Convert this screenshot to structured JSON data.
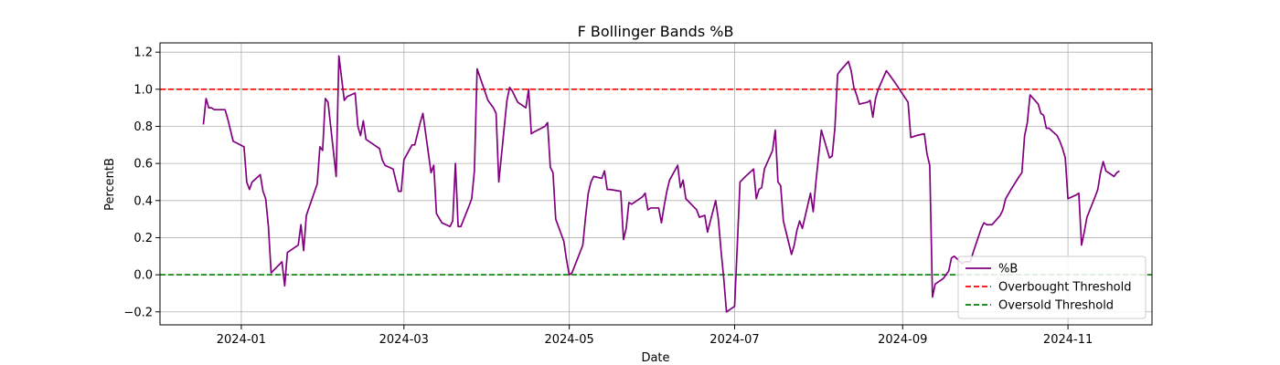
{
  "chart_data": {
    "type": "line",
    "title": "F Bollinger Bands %B",
    "xlabel": "Date",
    "ylabel": "PercentB",
    "xlim": [
      "2023-12-02",
      "2024-12-02"
    ],
    "ylim": [
      -0.27,
      1.25
    ],
    "x_ticks": [
      "2024-01-01",
      "2024-03-01",
      "2024-05-01",
      "2024-07-01",
      "2024-09-01",
      "2024-11-01"
    ],
    "x_tick_labels": [
      "2024-01",
      "2024-03",
      "2024-05",
      "2024-07",
      "2024-09",
      "2024-11"
    ],
    "y_ticks": [
      -0.2,
      0.0,
      0.2,
      0.4,
      0.6,
      0.8,
      1.0,
      1.2
    ],
    "y_tick_labels": [
      "−0.2",
      "0.0",
      "0.2",
      "0.4",
      "0.6",
      "0.8",
      "1.0",
      "1.2"
    ],
    "grid": true,
    "legend_position": "lower-right",
    "series": [
      {
        "name": "%B",
        "color": "#800080",
        "style": "solid",
        "points": [
          [
            "2023-12-18",
            0.81
          ],
          [
            "2023-12-19",
            0.95
          ],
          [
            "2023-12-20",
            0.9
          ],
          [
            "2023-12-21",
            0.9
          ],
          [
            "2023-12-22",
            0.89
          ],
          [
            "2023-12-26",
            0.89
          ],
          [
            "2023-12-27",
            0.84
          ],
          [
            "2023-12-28",
            0.78
          ],
          [
            "2023-12-29",
            0.72
          ],
          [
            "2024-01-02",
            0.69
          ],
          [
            "2024-01-03",
            0.5
          ],
          [
            "2024-01-04",
            0.46
          ],
          [
            "2024-01-05",
            0.5
          ],
          [
            "2024-01-08",
            0.54
          ],
          [
            "2024-01-09",
            0.45
          ],
          [
            "2024-01-10",
            0.41
          ],
          [
            "2024-01-11",
            0.26
          ],
          [
            "2024-01-12",
            0.01
          ],
          [
            "2024-01-16",
            0.07
          ],
          [
            "2024-01-17",
            -0.06
          ],
          [
            "2024-01-18",
            0.12
          ],
          [
            "2024-01-19",
            0.13
          ],
          [
            "2024-01-22",
            0.16
          ],
          [
            "2024-01-23",
            0.27
          ],
          [
            "2024-01-24",
            0.13
          ],
          [
            "2024-01-25",
            0.32
          ],
          [
            "2024-01-29",
            0.49
          ],
          [
            "2024-01-30",
            0.69
          ],
          [
            "2024-01-31",
            0.67
          ],
          [
            "2024-02-01",
            0.95
          ],
          [
            "2024-02-02",
            0.93
          ],
          [
            "2024-02-05",
            0.53
          ],
          [
            "2024-02-06",
            1.18
          ],
          [
            "2024-02-07",
            1.06
          ],
          [
            "2024-02-08",
            0.94
          ],
          [
            "2024-02-09",
            0.96
          ],
          [
            "2024-02-12",
            0.98
          ],
          [
            "2024-02-13",
            0.8
          ],
          [
            "2024-02-14",
            0.75
          ],
          [
            "2024-02-15",
            0.83
          ],
          [
            "2024-02-16",
            0.73
          ],
          [
            "2024-02-20",
            0.69
          ],
          [
            "2024-02-21",
            0.68
          ],
          [
            "2024-02-22",
            0.62
          ],
          [
            "2024-02-23",
            0.59
          ],
          [
            "2024-02-26",
            0.57
          ],
          [
            "2024-02-27",
            0.51
          ],
          [
            "2024-02-28",
            0.45
          ],
          [
            "2024-02-29",
            0.45
          ],
          [
            "2024-03-01",
            0.62
          ],
          [
            "2024-03-04",
            0.7
          ],
          [
            "2024-03-05",
            0.7
          ],
          [
            "2024-03-07",
            0.82
          ],
          [
            "2024-03-08",
            0.87
          ],
          [
            "2024-03-11",
            0.55
          ],
          [
            "2024-03-12",
            0.59
          ],
          [
            "2024-03-13",
            0.33
          ],
          [
            "2024-03-15",
            0.28
          ],
          [
            "2024-03-18",
            0.26
          ],
          [
            "2024-03-19",
            0.29
          ],
          [
            "2024-03-20",
            0.6
          ],
          [
            "2024-03-21",
            0.26
          ],
          [
            "2024-03-22",
            0.26
          ],
          [
            "2024-03-25",
            0.37
          ],
          [
            "2024-03-26",
            0.41
          ],
          [
            "2024-03-27",
            0.56
          ],
          [
            "2024-03-28",
            1.11
          ],
          [
            "2024-04-01",
            0.94
          ],
          [
            "2024-04-03",
            0.9
          ],
          [
            "2024-04-04",
            0.87
          ],
          [
            "2024-04-05",
            0.5
          ],
          [
            "2024-04-08",
            0.94
          ],
          [
            "2024-04-09",
            1.01
          ],
          [
            "2024-04-10",
            0.99
          ],
          [
            "2024-04-11",
            0.96
          ],
          [
            "2024-04-12",
            0.93
          ],
          [
            "2024-04-15",
            0.9
          ],
          [
            "2024-04-16",
            1.0
          ],
          [
            "2024-04-17",
            0.76
          ],
          [
            "2024-04-18",
            0.77
          ],
          [
            "2024-04-22",
            0.8
          ],
          [
            "2024-04-23",
            0.82
          ],
          [
            "2024-04-24",
            0.58
          ],
          [
            "2024-04-25",
            0.55
          ],
          [
            "2024-04-26",
            0.3
          ],
          [
            "2024-04-29",
            0.18
          ],
          [
            "2024-04-30",
            0.08
          ],
          [
            "2024-05-01",
            0.0
          ],
          [
            "2024-05-02",
            0.01
          ],
          [
            "2024-05-06",
            0.16
          ],
          [
            "2024-05-07",
            0.31
          ],
          [
            "2024-05-08",
            0.44
          ],
          [
            "2024-05-09",
            0.5
          ],
          [
            "2024-05-10",
            0.53
          ],
          [
            "2024-05-13",
            0.52
          ],
          [
            "2024-05-14",
            0.56
          ],
          [
            "2024-05-15",
            0.46
          ],
          [
            "2024-05-16",
            0.46
          ],
          [
            "2024-05-20",
            0.45
          ],
          [
            "2024-05-21",
            0.19
          ],
          [
            "2024-05-22",
            0.25
          ],
          [
            "2024-05-23",
            0.39
          ],
          [
            "2024-05-24",
            0.38
          ],
          [
            "2024-05-28",
            0.42
          ],
          [
            "2024-05-29",
            0.44
          ],
          [
            "2024-05-30",
            0.35
          ],
          [
            "2024-05-31",
            0.36
          ],
          [
            "2024-06-03",
            0.36
          ],
          [
            "2024-06-04",
            0.28
          ],
          [
            "2024-06-05",
            0.37
          ],
          [
            "2024-06-06",
            0.45
          ],
          [
            "2024-06-07",
            0.51
          ],
          [
            "2024-06-10",
            0.59
          ],
          [
            "2024-06-11",
            0.47
          ],
          [
            "2024-06-12",
            0.51
          ],
          [
            "2024-06-13",
            0.41
          ],
          [
            "2024-06-17",
            0.35
          ],
          [
            "2024-06-18",
            0.31
          ],
          [
            "2024-06-20",
            0.32
          ],
          [
            "2024-06-21",
            0.23
          ],
          [
            "2024-06-24",
            0.4
          ],
          [
            "2024-06-25",
            0.3
          ],
          [
            "2024-06-26",
            0.13
          ],
          [
            "2024-06-27",
            -0.02
          ],
          [
            "2024-06-28",
            -0.2
          ],
          [
            "2024-07-01",
            -0.17
          ],
          [
            "2024-07-02",
            0.16
          ],
          [
            "2024-07-03",
            0.5
          ],
          [
            "2024-07-05",
            0.53
          ],
          [
            "2024-07-08",
            0.57
          ],
          [
            "2024-07-09",
            0.41
          ],
          [
            "2024-07-10",
            0.46
          ],
          [
            "2024-07-11",
            0.47
          ],
          [
            "2024-07-12",
            0.57
          ],
          [
            "2024-07-15",
            0.67
          ],
          [
            "2024-07-16",
            0.78
          ],
          [
            "2024-07-17",
            0.5
          ],
          [
            "2024-07-18",
            0.48
          ],
          [
            "2024-07-19",
            0.29
          ],
          [
            "2024-07-22",
            0.11
          ],
          [
            "2024-07-23",
            0.16
          ],
          [
            "2024-07-24",
            0.24
          ],
          [
            "2024-07-25",
            0.29
          ],
          [
            "2024-07-26",
            0.25
          ],
          [
            "2024-07-29",
            0.44
          ],
          [
            "2024-07-30",
            0.34
          ],
          [
            "2024-07-31",
            0.5
          ],
          [
            "2024-08-02",
            0.78
          ],
          [
            "2024-08-05",
            0.63
          ],
          [
            "2024-08-06",
            0.64
          ],
          [
            "2024-08-07",
            0.79
          ],
          [
            "2024-08-08",
            1.08
          ],
          [
            "2024-08-09",
            1.1
          ],
          [
            "2024-08-12",
            1.15
          ],
          [
            "2024-08-13",
            1.1
          ],
          [
            "2024-08-14",
            1.01
          ],
          [
            "2024-08-15",
            0.97
          ],
          [
            "2024-08-16",
            0.92
          ],
          [
            "2024-08-19",
            0.93
          ],
          [
            "2024-08-20",
            0.94
          ],
          [
            "2024-08-21",
            0.85
          ],
          [
            "2024-08-22",
            0.95
          ],
          [
            "2024-08-23",
            1.0
          ],
          [
            "2024-08-26",
            1.1
          ],
          [
            "2024-08-27",
            1.08
          ],
          [
            "2024-08-28",
            1.06
          ],
          [
            "2024-08-29",
            1.04
          ],
          [
            "2024-09-03",
            0.93
          ],
          [
            "2024-09-04",
            0.74
          ],
          [
            "2024-09-06",
            0.75
          ],
          [
            "2024-09-09",
            0.76
          ],
          [
            "2024-09-10",
            0.65
          ],
          [
            "2024-09-11",
            0.59
          ],
          [
            "2024-09-12",
            -0.12
          ],
          [
            "2024-09-13",
            -0.05
          ],
          [
            "2024-09-16",
            -0.02
          ],
          [
            "2024-09-17",
            0.0
          ],
          [
            "2024-09-18",
            0.02
          ],
          [
            "2024-09-19",
            0.09
          ],
          [
            "2024-09-20",
            0.1
          ],
          [
            "2024-09-23",
            0.06
          ],
          [
            "2024-09-24",
            0.07
          ],
          [
            "2024-09-26",
            0.07
          ],
          [
            "2024-09-27",
            0.12
          ],
          [
            "2024-09-30",
            0.25
          ],
          [
            "2024-10-01",
            0.28
          ],
          [
            "2024-10-02",
            0.27
          ],
          [
            "2024-10-04",
            0.27
          ],
          [
            "2024-10-07",
            0.32
          ],
          [
            "2024-10-08",
            0.35
          ],
          [
            "2024-10-09",
            0.41
          ],
          [
            "2024-10-11",
            0.46
          ],
          [
            "2024-10-14",
            0.53
          ],
          [
            "2024-10-15",
            0.55
          ],
          [
            "2024-10-16",
            0.75
          ],
          [
            "2024-10-17",
            0.82
          ],
          [
            "2024-10-18",
            0.97
          ],
          [
            "2024-10-21",
            0.92
          ],
          [
            "2024-10-22",
            0.87
          ],
          [
            "2024-10-23",
            0.86
          ],
          [
            "2024-10-24",
            0.79
          ],
          [
            "2024-10-25",
            0.79
          ],
          [
            "2024-10-28",
            0.75
          ],
          [
            "2024-10-29",
            0.72
          ],
          [
            "2024-10-30",
            0.68
          ],
          [
            "2024-10-31",
            0.63
          ],
          [
            "2024-11-01",
            0.41
          ],
          [
            "2024-11-04",
            0.43
          ],
          [
            "2024-11-05",
            0.44
          ],
          [
            "2024-11-06",
            0.16
          ],
          [
            "2024-11-07",
            0.23
          ],
          [
            "2024-11-08",
            0.31
          ],
          [
            "2024-11-11",
            0.42
          ],
          [
            "2024-11-12",
            0.46
          ],
          [
            "2024-11-13",
            0.55
          ],
          [
            "2024-11-14",
            0.61
          ],
          [
            "2024-11-15",
            0.56
          ],
          [
            "2024-11-18",
            0.53
          ],
          [
            "2024-11-19",
            0.55
          ],
          [
            "2024-11-20",
            0.56
          ]
        ]
      },
      {
        "name": "Overbought Threshold",
        "color": "#ff0000",
        "style": "dashed",
        "constant": 1.0
      },
      {
        "name": "Oversold Threshold",
        "color": "#008000",
        "style": "dashed",
        "constant": 0.0
      }
    ]
  }
}
